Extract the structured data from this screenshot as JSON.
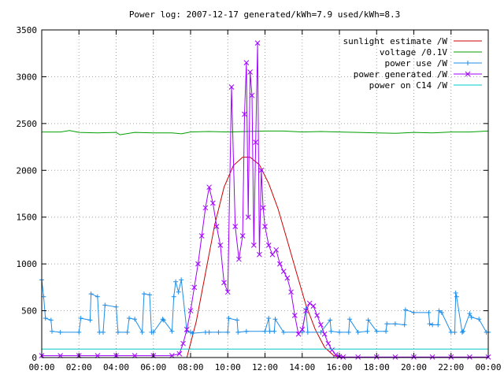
{
  "chart_data": {
    "type": "line",
    "title": "Power log: 2007-12-17 generated/kWh=7.9 used/kWh=8.3",
    "xlabel": "",
    "ylabel": "",
    "xlim": [
      0,
      24
    ],
    "ylim": [
      0,
      3500
    ],
    "grid": true,
    "legend_position": "top-right",
    "x_ticks": [
      {
        "value": 0,
        "label": "00:00"
      },
      {
        "value": 2,
        "label": "02:00"
      },
      {
        "value": 4,
        "label": "04:00"
      },
      {
        "value": 6,
        "label": "06:00"
      },
      {
        "value": 8,
        "label": "08:00"
      },
      {
        "value": 10,
        "label": "10:00"
      },
      {
        "value": 12,
        "label": "12:00"
      },
      {
        "value": 14,
        "label": "14:00"
      },
      {
        "value": 16,
        "label": "16:00"
      },
      {
        "value": 18,
        "label": "18:00"
      },
      {
        "value": 20,
        "label": "20:00"
      },
      {
        "value": 22,
        "label": "22:00"
      },
      {
        "value": 24,
        "label": "00:00"
      }
    ],
    "y_ticks": [
      {
        "value": 0,
        "label": "0"
      },
      {
        "value": 500,
        "label": "500"
      },
      {
        "value": 1000,
        "label": "1000"
      },
      {
        "value": 1500,
        "label": "1500"
      },
      {
        "value": 2000,
        "label": "2000"
      },
      {
        "value": 2500,
        "label": "2500"
      },
      {
        "value": 3000,
        "label": "3000"
      },
      {
        "value": 3500,
        "label": "3500"
      }
    ],
    "series": [
      {
        "name": "sunlight estimate /W",
        "color": "#cc0000",
        "marker": "none",
        "x": [
          7.8,
          8.3,
          8.8,
          9.3,
          9.8,
          10.3,
          10.8,
          11.2,
          11.7,
          12.2,
          12.7,
          13.2,
          13.7,
          14.2,
          14.7,
          15.2,
          15.7,
          16.2
        ],
        "y": [
          0,
          380,
          900,
          1420,
          1820,
          2050,
          2140,
          2140,
          2060,
          1860,
          1590,
          1250,
          900,
          560,
          300,
          110,
          20,
          0
        ]
      },
      {
        "name": "voltage /0.1V",
        "color": "#00a000",
        "marker": "none",
        "x": [
          0,
          1,
          1.5,
          2,
          3,
          4,
          4.2,
          5,
          6,
          7,
          7.5,
          8,
          9,
          10,
          11,
          12,
          13,
          14,
          15,
          16,
          17,
          18,
          19,
          20,
          21,
          22,
          23,
          24
        ],
        "y": [
          2410,
          2410,
          2425,
          2405,
          2400,
          2405,
          2380,
          2405,
          2400,
          2400,
          2390,
          2410,
          2415,
          2410,
          2415,
          2420,
          2420,
          2410,
          2415,
          2410,
          2405,
          2400,
          2395,
          2405,
          2400,
          2410,
          2410,
          2420
        ]
      },
      {
        "name": "power use /W",
        "color": "#1f8ee8",
        "marker": "plus",
        "x": [
          0,
          0.1,
          0.2,
          0.5,
          0.55,
          1,
          2,
          2.1,
          2.6,
          2.65,
          3,
          3.1,
          3.3,
          3.4,
          4,
          4.1,
          4.6,
          4.7,
          5,
          5.4,
          5.5,
          5.8,
          5.9,
          6,
          6.5,
          6.55,
          7,
          7.1,
          7.2,
          7.35,
          7.5,
          7.8,
          8,
          8.1,
          8.8,
          9,
          9.5,
          10,
          10.05,
          10.5,
          10.55,
          11,
          12,
          12.2,
          12.25,
          12.5,
          12.55,
          13,
          14,
          14.2,
          14.3,
          15,
          15.5,
          15.55,
          16,
          16.5,
          16.55,
          17,
          17.5,
          17.55,
          18,
          18.5,
          18.55,
          19,
          19.5,
          19.55,
          20,
          20.8,
          20.85,
          21,
          21.3,
          21.35,
          21.5,
          22,
          22.2,
          22.25,
          22.3,
          22.6,
          22.65,
          23,
          23.1,
          23.5,
          23.9,
          24
        ],
        "y": [
          830,
          650,
          420,
          400,
          280,
          270,
          270,
          420,
          400,
          680,
          650,
          270,
          270,
          560,
          540,
          270,
          270,
          420,
          410,
          270,
          680,
          670,
          270,
          270,
          410,
          400,
          280,
          650,
          810,
          700,
          830,
          280,
          270,
          260,
          270,
          270,
          270,
          270,
          420,
          400,
          270,
          280,
          280,
          420,
          280,
          280,
          410,
          270,
          270,
          520,
          270,
          270,
          400,
          280,
          270,
          270,
          410,
          270,
          280,
          400,
          280,
          280,
          360,
          360,
          350,
          510,
          480,
          480,
          360,
          350,
          350,
          500,
          480,
          270,
          270,
          690,
          650,
          270,
          280,
          470,
          430,
          410,
          270,
          270
        ]
      },
      {
        "name": "power generated /W",
        "color": "#a000ff",
        "marker": "x",
        "x": [
          0,
          1,
          2,
          3,
          4,
          5,
          6,
          7,
          7.4,
          7.6,
          7.8,
          8.0,
          8.2,
          8.4,
          8.6,
          8.8,
          9.0,
          9.2,
          9.4,
          9.6,
          9.8,
          10.0,
          10.2,
          10.4,
          10.6,
          10.8,
          10.9,
          11.0,
          11.1,
          11.2,
          11.3,
          11.4,
          11.5,
          11.6,
          11.7,
          11.8,
          11.9,
          12.0,
          12.2,
          12.4,
          12.6,
          12.8,
          13.0,
          13.2,
          13.4,
          13.6,
          13.8,
          14.0,
          14.2,
          14.4,
          14.6,
          14.8,
          15.0,
          15.2,
          15.4,
          15.6,
          15.8,
          16.0,
          16.2,
          17,
          18,
          19,
          20,
          21,
          22,
          23,
          24
        ],
        "y": [
          20,
          20,
          20,
          20,
          20,
          20,
          20,
          20,
          40,
          150,
          300,
          500,
          750,
          1000,
          1300,
          1600,
          1820,
          1650,
          1400,
          1200,
          800,
          700,
          2890,
          1400,
          1050,
          1300,
          2600,
          3150,
          1500,
          3050,
          2800,
          1200,
          2300,
          3360,
          1100,
          2000,
          1600,
          1400,
          1200,
          1100,
          1150,
          1000,
          920,
          850,
          700,
          450,
          250,
          300,
          500,
          580,
          550,
          450,
          350,
          250,
          150,
          80,
          30,
          10,
          5,
          5,
          5,
          5,
          5,
          5,
          5,
          5,
          5
        ]
      },
      {
        "name": "power on C14 /W",
        "color": "#00c8c8",
        "marker": "none",
        "x": [
          0,
          24
        ],
        "y": [
          90,
          90
        ]
      }
    ]
  }
}
